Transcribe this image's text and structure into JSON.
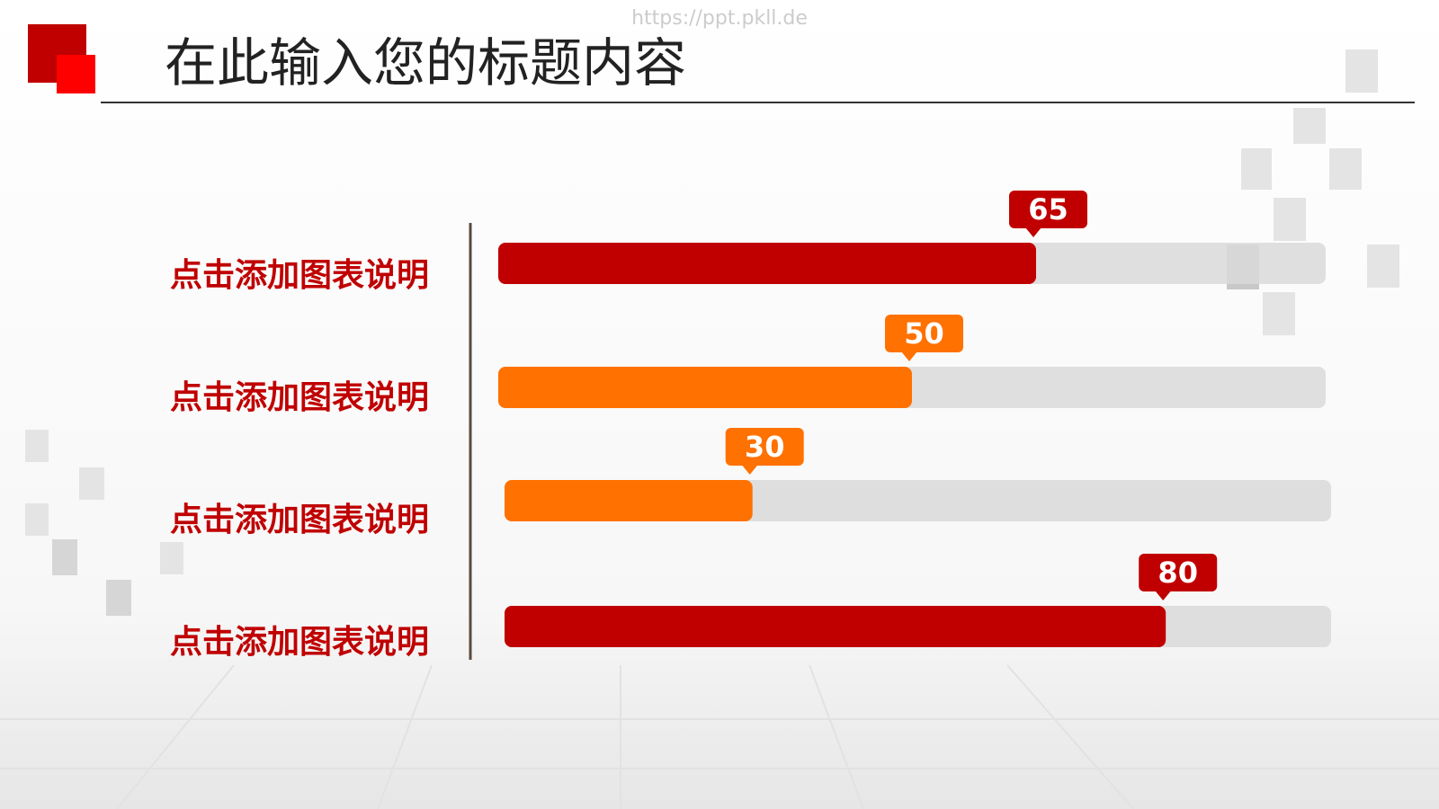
{
  "watermark": "https://ppt.pkll.de",
  "chart_data": {
    "type": "bar",
    "orientation": "horizontal",
    "title": "在此输入您的标题内容",
    "categories": [
      "点击添加图表说明",
      "点击添加图表说明",
      "点击添加图表说明",
      "点击添加图表说明"
    ],
    "values": [
      65,
      50,
      30,
      80
    ],
    "colors": [
      "#c00000",
      "#ff7100",
      "#ff7100",
      "#c00000"
    ],
    "xlim": [
      0,
      100
    ]
  }
}
